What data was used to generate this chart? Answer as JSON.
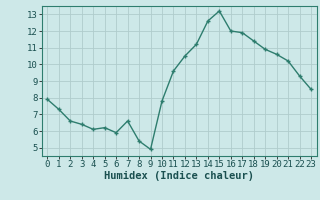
{
  "x": [
    0,
    1,
    2,
    3,
    4,
    5,
    6,
    7,
    8,
    9,
    10,
    11,
    12,
    13,
    14,
    15,
    16,
    17,
    18,
    19,
    20,
    21,
    22,
    23
  ],
  "y": [
    7.9,
    7.3,
    6.6,
    6.4,
    6.1,
    6.2,
    5.9,
    6.6,
    5.4,
    4.9,
    7.8,
    9.6,
    10.5,
    11.2,
    12.6,
    13.2,
    12.0,
    11.9,
    11.4,
    10.9,
    10.6,
    10.2,
    9.3,
    8.5
  ],
  "line_color": "#2e7d6e",
  "marker": "+",
  "marker_size": 3,
  "bg_color": "#cde8e8",
  "grid_color": "#b0cccc",
  "xlabel": "Humidex (Indice chaleur)",
  "ylim": [
    4.5,
    13.5
  ],
  "xlim": [
    -0.5,
    23.5
  ],
  "yticks": [
    5,
    6,
    7,
    8,
    9,
    10,
    11,
    12,
    13
  ],
  "xticks": [
    0,
    1,
    2,
    3,
    4,
    5,
    6,
    7,
    8,
    9,
    10,
    11,
    12,
    13,
    14,
    15,
    16,
    17,
    18,
    19,
    20,
    21,
    22,
    23
  ],
  "tick_label_fontsize": 6.5,
  "xlabel_fontsize": 7.5,
  "line_width": 1.0
}
